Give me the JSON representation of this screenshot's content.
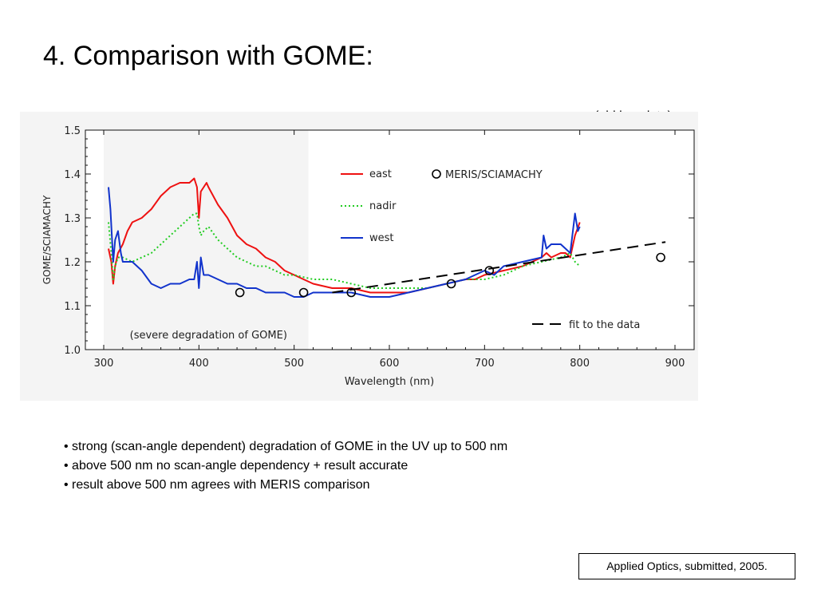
{
  "slide": {
    "title": "4. Comparison with GOME:",
    "note_top": "(old key data)",
    "bullets": [
      "strong (scan-angle dependent) degradation of GOME in the UV up to 500 nm",
      "above 500 nm no scan-angle dependency + result accurate",
      "result above 500 nm agrees with MERIS comparison"
    ],
    "citation": "Applied Optics, submitted, 2005."
  },
  "chart_data": {
    "type": "line",
    "xlabel": "Wavelength (nm)",
    "ylabel": "GOME/SCIAMACHY",
    "xlim": [
      300,
      900
    ],
    "ylim": [
      1.0,
      1.5
    ],
    "xticks": [
      300,
      400,
      500,
      600,
      700,
      800,
      900
    ],
    "yticks": [
      1.0,
      1.1,
      1.2,
      1.3,
      1.4,
      1.5
    ],
    "ytick_labels": [
      "1.0",
      "1.1",
      "1.2",
      "1.3",
      "1.4",
      "1.5"
    ],
    "shaded_region": {
      "x": [
        300,
        515
      ],
      "label": "(severe degradation of GOME)"
    },
    "grid": false,
    "legend_position": "top-right",
    "series": [
      {
        "name": "east",
        "color": "#ee1111",
        "style": "solid",
        "x": [
          305,
          308,
          310,
          312,
          315,
          320,
          325,
          330,
          340,
          350,
          360,
          370,
          380,
          390,
          395,
          398,
          400,
          402,
          405,
          408,
          410,
          420,
          430,
          440,
          450,
          460,
          470,
          480,
          490,
          500,
          510,
          520,
          540,
          560,
          580,
          600,
          620,
          640,
          660,
          680,
          690,
          700,
          720,
          740,
          760,
          765,
          770,
          780,
          785,
          790,
          795,
          800
        ],
        "y": [
          1.23,
          1.2,
          1.15,
          1.19,
          1.22,
          1.24,
          1.27,
          1.29,
          1.3,
          1.32,
          1.35,
          1.37,
          1.38,
          1.38,
          1.39,
          1.37,
          1.3,
          1.36,
          1.37,
          1.38,
          1.37,
          1.33,
          1.3,
          1.26,
          1.24,
          1.23,
          1.21,
          1.2,
          1.18,
          1.17,
          1.16,
          1.15,
          1.14,
          1.14,
          1.13,
          1.13,
          1.13,
          1.14,
          1.15,
          1.16,
          1.16,
          1.17,
          1.18,
          1.19,
          1.21,
          1.22,
          1.21,
          1.22,
          1.22,
          1.21,
          1.26,
          1.29
        ]
      },
      {
        "name": "nadir",
        "color": "#22cc22",
        "style": "dotted",
        "x": [
          305,
          308,
          310,
          312,
          315,
          320,
          330,
          340,
          350,
          360,
          370,
          380,
          390,
          395,
          398,
          400,
          402,
          405,
          410,
          420,
          430,
          440,
          450,
          460,
          470,
          480,
          490,
          500,
          520,
          540,
          560,
          580,
          600,
          620,
          640,
          660,
          680,
          690,
          700,
          720,
          740,
          760,
          780,
          790,
          795,
          800
        ],
        "y": [
          1.29,
          1.22,
          1.16,
          1.19,
          1.21,
          1.21,
          1.2,
          1.21,
          1.22,
          1.24,
          1.26,
          1.28,
          1.3,
          1.31,
          1.31,
          1.28,
          1.26,
          1.27,
          1.28,
          1.25,
          1.23,
          1.21,
          1.2,
          1.19,
          1.19,
          1.18,
          1.17,
          1.17,
          1.16,
          1.16,
          1.15,
          1.14,
          1.14,
          1.14,
          1.14,
          1.15,
          1.16,
          1.16,
          1.16,
          1.17,
          1.19,
          1.2,
          1.21,
          1.22,
          1.2,
          1.19
        ]
      },
      {
        "name": "west",
        "color": "#1133cc",
        "style": "solid",
        "x": [
          305,
          307,
          310,
          312,
          315,
          318,
          320,
          330,
          340,
          350,
          360,
          370,
          380,
          390,
          395,
          398,
          400,
          402,
          405,
          410,
          420,
          430,
          440,
          450,
          460,
          470,
          480,
          490,
          500,
          510,
          520,
          540,
          560,
          580,
          600,
          620,
          640,
          660,
          680,
          690,
          700,
          710,
          720,
          740,
          760,
          762,
          765,
          770,
          780,
          785,
          790,
          795,
          798,
          800
        ],
        "y": [
          1.37,
          1.32,
          1.2,
          1.25,
          1.27,
          1.22,
          1.2,
          1.2,
          1.18,
          1.15,
          1.14,
          1.15,
          1.15,
          1.16,
          1.16,
          1.2,
          1.14,
          1.21,
          1.17,
          1.17,
          1.16,
          1.15,
          1.15,
          1.14,
          1.14,
          1.13,
          1.13,
          1.13,
          1.12,
          1.12,
          1.13,
          1.13,
          1.13,
          1.12,
          1.12,
          1.13,
          1.14,
          1.15,
          1.16,
          1.17,
          1.18,
          1.17,
          1.19,
          1.2,
          1.21,
          1.26,
          1.23,
          1.24,
          1.24,
          1.23,
          1.22,
          1.31,
          1.27,
          1.28
        ]
      },
      {
        "name": "MERIS/SCIAMACHY",
        "color": "#000000",
        "style": "marker",
        "x": [
          443,
          510,
          560,
          665,
          705,
          885
        ],
        "y": [
          1.13,
          1.13,
          1.13,
          1.15,
          1.18,
          1.21
        ]
      },
      {
        "name": "fit to the data",
        "color": "#000000",
        "style": "dashed",
        "x": [
          540,
          890
        ],
        "y": [
          1.13,
          1.245
        ]
      }
    ]
  }
}
